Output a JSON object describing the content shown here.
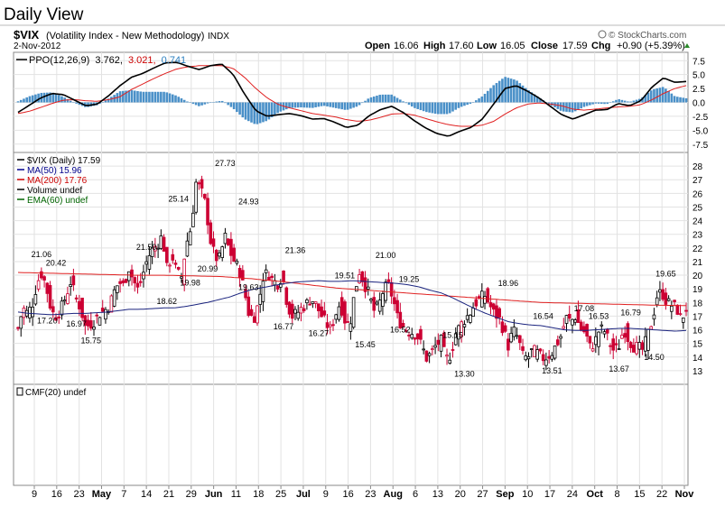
{
  "page": {
    "title": "Daily View",
    "symbol": "$VIX",
    "description": "(Volatility Index - New Methodology)",
    "exchange": "INDX",
    "date": "2-Nov-2012",
    "brand": "© StockCharts.com",
    "quote": {
      "open_label": "Open",
      "open": "16.06",
      "high_label": "High",
      "high": "17.60",
      "low_label": "Low",
      "low": "16.05",
      "close_label": "Close",
      "close": "17.59",
      "chg_label": "Chg",
      "chg": "+0.90 (+5.39%)"
    }
  },
  "ppo_panel": {
    "label": "PPO(12,26,9)",
    "v1": "3.762,",
    "v2": "3.021,",
    "v3": "0.741",
    "y_ticks": [
      "7.5",
      "5.0",
      "2.5",
      "0.0",
      "-2.5",
      "-5.0",
      "-7.5"
    ]
  },
  "price_panel": {
    "legend": [
      {
        "text": "$VIX (Daily) 17.59",
        "color": "#000000"
      },
      {
        "text": "MA(50) 15.96",
        "color": "#00008b"
      },
      {
        "text": "MA(200) 17.76",
        "color": "#cc0000"
      },
      {
        "text": "Volume undef",
        "color": "#000000"
      },
      {
        "text": "EMA(60) undef",
        "color": "#006400"
      }
    ],
    "y_ticks": [
      "28",
      "27",
      "26",
      "25",
      "24",
      "23",
      "22",
      "21",
      "20",
      "19",
      "18",
      "17",
      "16",
      "15",
      "14",
      "13"
    ]
  },
  "cmf_panel": {
    "label": "CMF(20) undef"
  },
  "x_axis": {
    "labels": [
      "9",
      "16",
      "23",
      "May",
      "7",
      "14",
      "21",
      "29",
      "Jun",
      "11",
      "18",
      "25",
      "Jul",
      "9",
      "16",
      "23",
      "Aug",
      "6",
      "13",
      "20",
      "27",
      "Sep",
      "10",
      "17",
      "24",
      "Oct",
      "8",
      "15",
      "22",
      "Nov"
    ]
  },
  "chart_data": {
    "type": "candlestick",
    "title": "Daily View",
    "symbol": "$VIX",
    "price_ylim": [
      12,
      29
    ],
    "ppo_ylim": [
      -9,
      9
    ],
    "closes": [
      16.1,
      17.6,
      17.2,
      17.9,
      19.5,
      20.2,
      18.9,
      17.3,
      17.0,
      17.6,
      18.5,
      19.6,
      18.3,
      17.6,
      16.2,
      16.4,
      16.7,
      17.2,
      17.4,
      17.8,
      18.8,
      19.5,
      19.2,
      20.6,
      19.6,
      18.9,
      20.1,
      21.3,
      21.9,
      22.3,
      22.9,
      20.4,
      21.5,
      20.2,
      19.9,
      22.3,
      23.5,
      26.8,
      26.3,
      25.2,
      22.6,
      21.3,
      21.2,
      22.9,
      21.8,
      21.0,
      20.4,
      19.0,
      17.2,
      16.8,
      17.9,
      19.9,
      20.2,
      19.6,
      19.4,
      20.0,
      17.9,
      17.0,
      17.2,
      17.6,
      17.9,
      18.3,
      17.8,
      17.1,
      16.5,
      16.0,
      17.1,
      18.0,
      16.7,
      16.3,
      18.7,
      20.3,
      19.4,
      18.6,
      17.4,
      17.7,
      18.9,
      19.3,
      18.3,
      16.8,
      16.3,
      15.9,
      15.8,
      15.6,
      14.8,
      13.9,
      14.3,
      14.9,
      15.2,
      13.8,
      14.2,
      15.7,
      16.3,
      16.8,
      17.2,
      17.9,
      18.2,
      18.6,
      17.9,
      17.2,
      16.9,
      16.0,
      14.8,
      16.0,
      15.4,
      14.1,
      13.9,
      14.5,
      14.3,
      13.9,
      14.0,
      14.3,
      14.9,
      15.6,
      16.9,
      16.6,
      17.0,
      16.1,
      15.8,
      14.7,
      15.1,
      16.1,
      15.9,
      15.1,
      14.4,
      14.8,
      16.1,
      15.3,
      14.8,
      14.7,
      14.5,
      15.6,
      16.8,
      18.6,
      18.7,
      18.0,
      17.8,
      17.6,
      16.7,
      17.6
    ],
    "ma50": [
      17.3,
      17.2,
      17.15,
      17.1,
      17.15,
      17.2,
      17.2,
      17.25,
      17.3,
      17.4,
      17.5,
      17.5,
      17.55,
      17.6,
      17.6,
      17.7,
      17.85,
      18.0,
      18.2,
      18.4,
      18.7,
      18.95,
      19.1,
      19.25,
      19.4,
      19.5,
      19.55,
      19.6,
      19.55,
      19.55,
      19.6,
      19.55,
      19.5,
      19.45,
      19.4,
      19.3,
      19.15,
      18.9,
      18.7,
      18.35,
      17.95,
      17.55,
      17.2,
      16.9,
      16.6,
      16.45,
      16.35,
      16.3,
      16.15,
      16.0,
      15.95,
      15.95,
      16.0,
      16.05,
      16.1,
      16.1,
      16.05,
      16.0,
      15.95,
      15.9,
      15.95
    ],
    "ma200": [
      20.2,
      20.15,
      20.1,
      20.05,
      20.0,
      20.0,
      19.95,
      19.9,
      19.75,
      19.55,
      19.3,
      19.05,
      18.9,
      18.75,
      18.6,
      18.45,
      18.3,
      18.15,
      18.0,
      17.95,
      17.9,
      17.85,
      17.8,
      17.77
    ],
    "ppo": [
      -1.8,
      -0.5,
      0.8,
      1.6,
      1.4,
      0.4,
      -0.6,
      -0.3,
      1.2,
      3.0,
      4.5,
      5.2,
      6.2,
      7.1,
      7.2,
      6.5,
      5.9,
      6.6,
      6.9,
      5.0,
      1.5,
      -1.5,
      -2.5,
      -2.2,
      -2.0,
      -2.4,
      -3.0,
      -2.9,
      -3.6,
      -4.5,
      -4.1,
      -2.4,
      -1.3,
      -0.7,
      -1.8,
      -3.3,
      -4.6,
      -5.6,
      -6.1,
      -5.2,
      -4.5,
      -3.0,
      -0.3,
      2.5,
      3.0,
      2.0,
      0.8,
      -0.7,
      -2.2,
      -3.0,
      -2.2,
      -1.4,
      -1.3,
      -0.2,
      -0.6,
      0.3,
      2.8,
      4.4,
      3.6,
      3.762
    ],
    "ppo_signal": [
      -2.0,
      -1.6,
      -0.9,
      -0.2,
      0.4,
      0.5,
      0.3,
      0.2,
      0.5,
      1.0,
      2.3,
      3.3,
      4.3,
      5.2,
      6.0,
      6.4,
      6.6,
      6.6,
      6.6,
      6.1,
      4.5,
      2.5,
      0.8,
      -0.4,
      -1.0,
      -1.5,
      -2.0,
      -2.3,
      -2.6,
      -3.1,
      -3.4,
      -3.2,
      -2.7,
      -2.1,
      -2.0,
      -2.3,
      -2.9,
      -3.5,
      -4.0,
      -4.3,
      -4.3,
      -4.1,
      -3.4,
      -2.1,
      -1.0,
      -0.3,
      -0.1,
      -0.3,
      -0.6,
      -1.2,
      -1.4,
      -1.2,
      -1.0,
      -0.8,
      -0.7,
      -0.4,
      0.5,
      1.6,
      2.5,
      3.021
    ],
    "annotations": [
      {
        "text": "21.06",
        "i": 8,
        "pos": "above"
      },
      {
        "text": "20.42",
        "i": 13,
        "pos": "above"
      },
      {
        "text": "17.20",
        "i": 10,
        "pos": "below"
      },
      {
        "text": "16.97",
        "i": 20,
        "pos": "below"
      },
      {
        "text": "15.75",
        "i": 25,
        "pos": "below"
      },
      {
        "text": "21.59",
        "i": 44,
        "pos": "above"
      },
      {
        "text": "18.62",
        "i": 51,
        "pos": "below"
      },
      {
        "text": "25.14",
        "i": 55,
        "pos": "above"
      },
      {
        "text": "19.98",
        "i": 59,
        "pos": "below"
      },
      {
        "text": "20.99",
        "i": 65,
        "pos": "below"
      },
      {
        "text": "27.73",
        "i": 71,
        "pos": "above"
      },
      {
        "text": "24.93",
        "i": 79,
        "pos": "above"
      },
      {
        "text": "19.63",
        "i": 79,
        "pos": "below"
      },
      {
        "text": "21.36",
        "i": 95,
        "pos": "above"
      },
      {
        "text": "16.77",
        "i": 91,
        "pos": "below"
      },
      {
        "text": "16.27",
        "i": 103,
        "pos": "below"
      },
      {
        "text": "19.51",
        "i": 112,
        "pos": "above"
      },
      {
        "text": "15.45",
        "i": 119,
        "pos": "below"
      },
      {
        "text": "21.00",
        "i": 126,
        "pos": "above"
      },
      {
        "text": "19.25",
        "i": 134,
        "pos": "above"
      },
      {
        "text": "16.52",
        "i": 131,
        "pos": "below"
      },
      {
        "text": "15.15",
        "i": 149,
        "pos": "above"
      },
      {
        "text": "13.30",
        "i": 153,
        "pos": "below"
      },
      {
        "text": "18.96",
        "i": 168,
        "pos": "above"
      },
      {
        "text": "16.54",
        "i": 180,
        "pos": "above"
      },
      {
        "text": "13.51",
        "i": 183,
        "pos": "below"
      },
      {
        "text": "17.08",
        "i": 194,
        "pos": "above"
      },
      {
        "text": "16.53",
        "i": 199,
        "pos": "above"
      },
      {
        "text": "16.79",
        "i": 210,
        "pos": "above"
      },
      {
        "text": "13.67",
        "i": 206,
        "pos": "below"
      },
      {
        "text": "14.50",
        "i": 218,
        "pos": "below"
      },
      {
        "text": "19.65",
        "i": 222,
        "pos": "above"
      }
    ]
  }
}
